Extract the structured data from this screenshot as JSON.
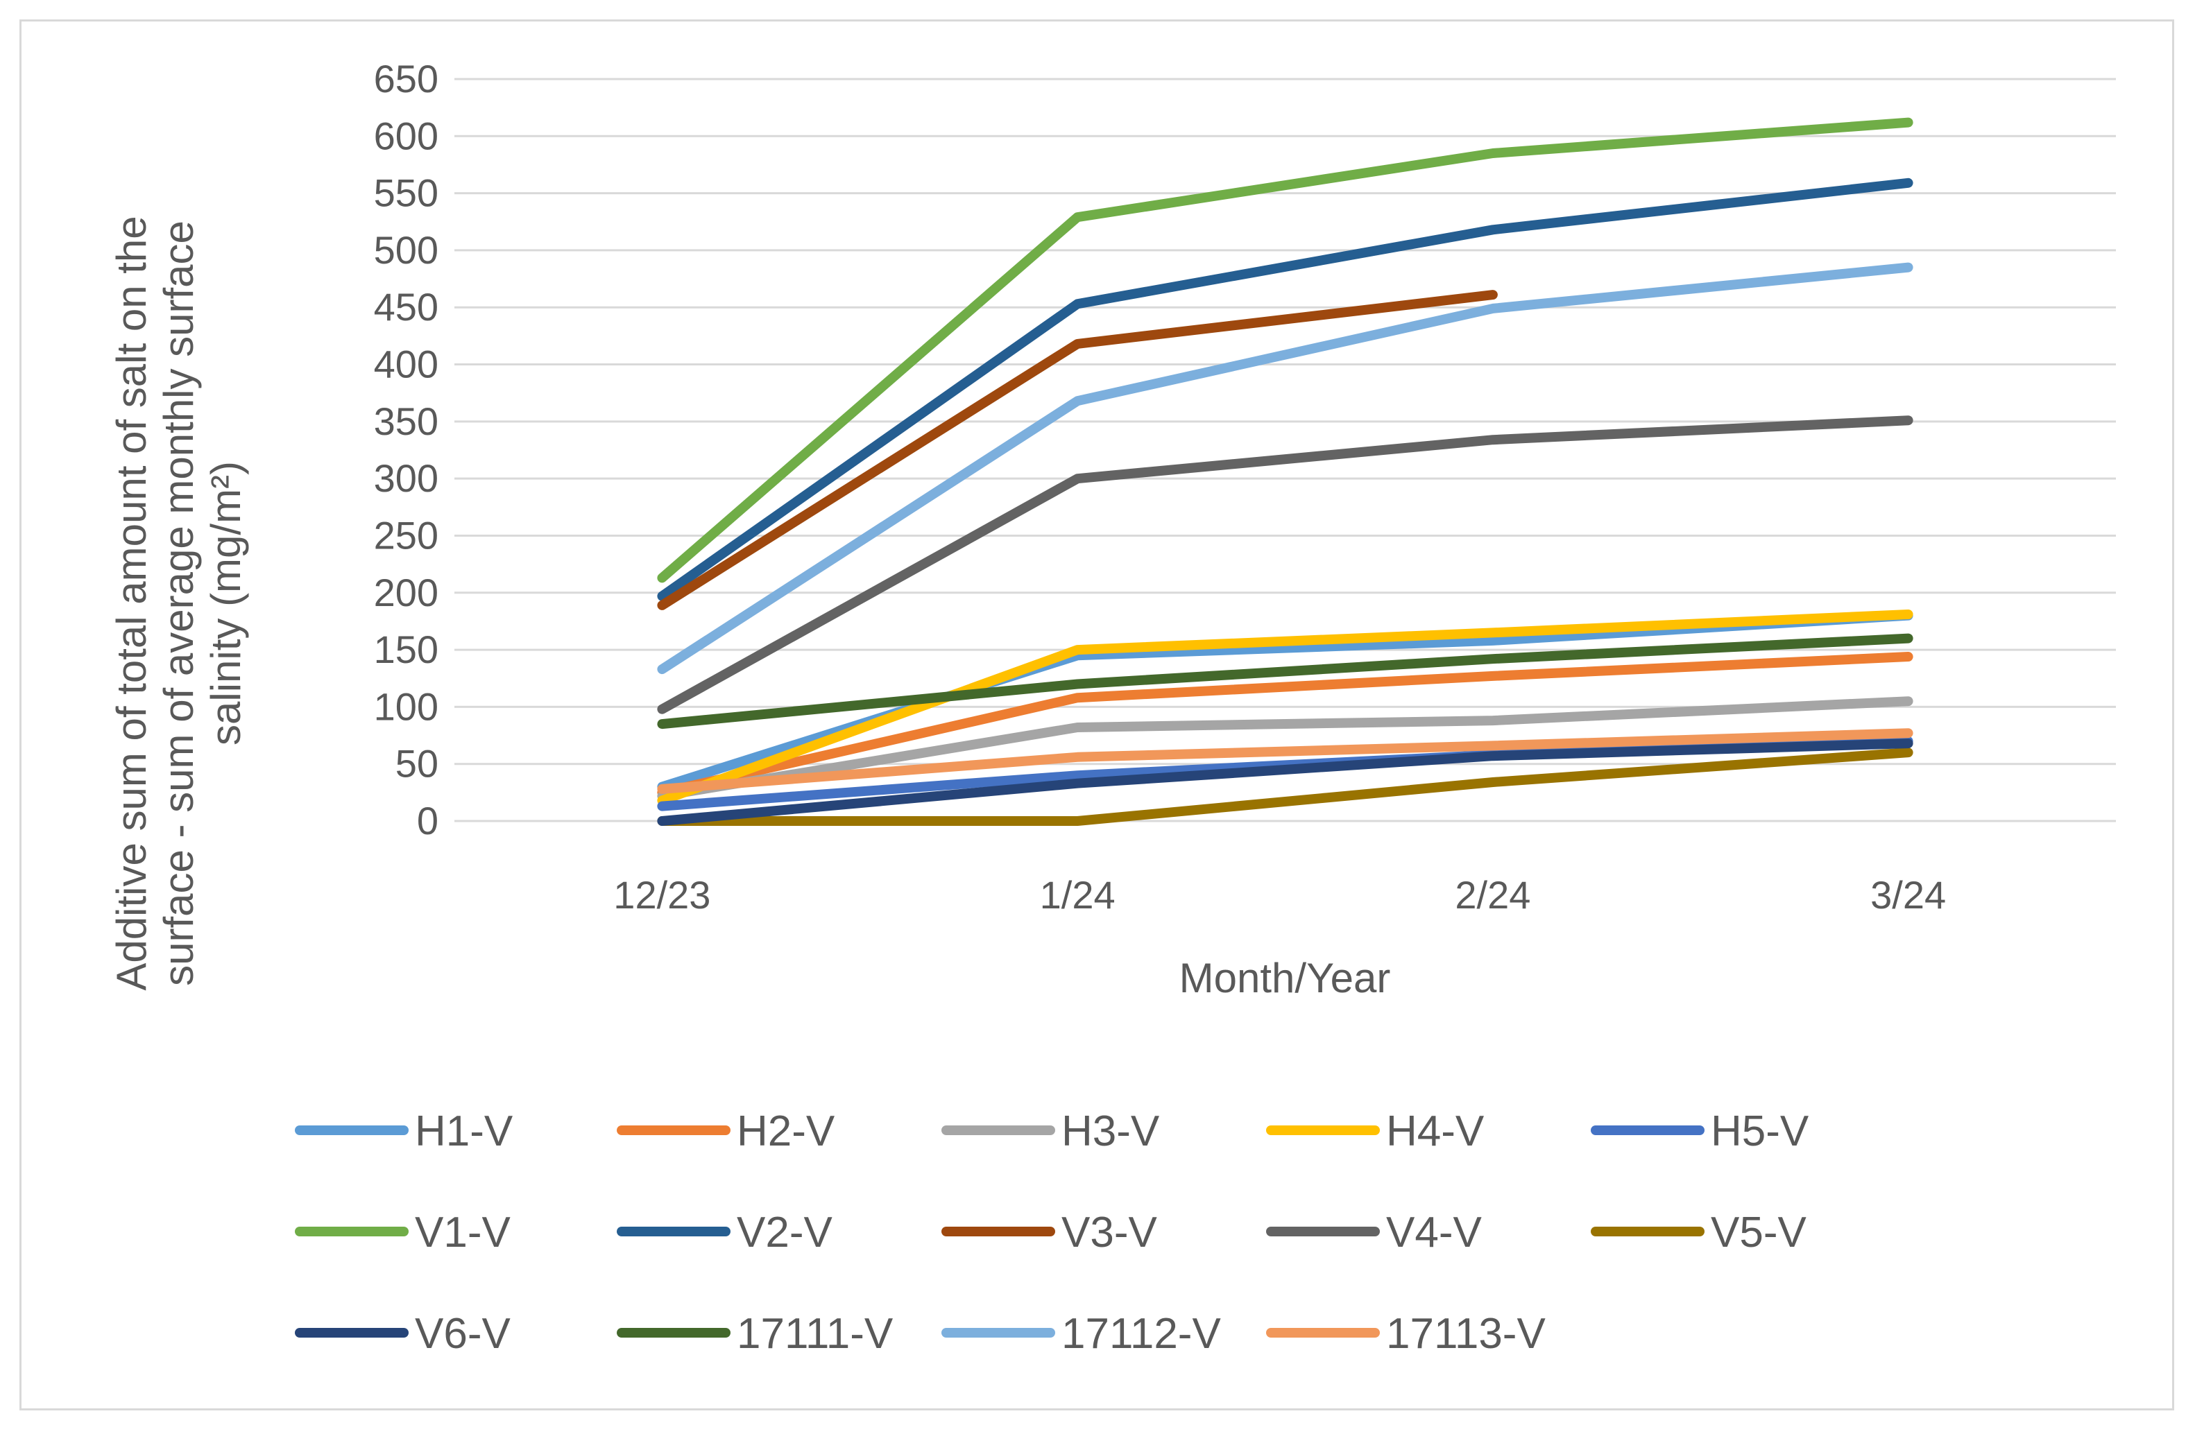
{
  "chart_data": {
    "type": "line",
    "title": "",
    "xlabel": "Month/Year",
    "ylabel_lines": [
      "Additive sum of total amount of salt on the",
      "surface - sum of average monthly surface",
      "salinity (mg/m²)"
    ],
    "categories": [
      "12/23",
      "1/24",
      "2/24",
      "3/24"
    ],
    "ylim": [
      0,
      650
    ],
    "yticks": [
      0,
      50,
      100,
      150,
      200,
      250,
      300,
      350,
      400,
      450,
      500,
      550,
      600,
      650
    ],
    "grid": true,
    "legend_position": "bottom",
    "series": [
      {
        "name": "H1-V",
        "color": "#5B9BD5",
        "values": [
          30,
          145,
          158,
          180
        ]
      },
      {
        "name": "H2-V",
        "color": "#ED7D31",
        "values": [
          25,
          108,
          127,
          144
        ]
      },
      {
        "name": "H3-V",
        "color": "#A5A5A5",
        "values": [
          22,
          82,
          88,
          105
        ]
      },
      {
        "name": "H4-V",
        "color": "#FFC000",
        "values": [
          18,
          150,
          165,
          181
        ]
      },
      {
        "name": "H5-V",
        "color": "#4472C4",
        "values": [
          13,
          40,
          58,
          70
        ]
      },
      {
        "name": "V1-V",
        "color": "#70AD47",
        "values": [
          213,
          529,
          585,
          612
        ]
      },
      {
        "name": "V2-V",
        "color": "#255E91",
        "values": [
          197,
          453,
          518,
          559
        ]
      },
      {
        "name": "V3-V",
        "color": "#9E480E",
        "values": [
          189,
          418,
          461,
          null
        ]
      },
      {
        "name": "V4-V",
        "color": "#636363",
        "values": [
          98,
          300,
          334,
          351
        ]
      },
      {
        "name": "V5-V",
        "color": "#997300",
        "values": [
          0,
          0,
          34,
          60
        ]
      },
      {
        "name": "V6-V",
        "color": "#264478",
        "values": [
          0,
          33,
          57,
          68
        ]
      },
      {
        "name": "17111-V",
        "color": "#43682B",
        "values": [
          85,
          120,
          142,
          160
        ]
      },
      {
        "name": "17112-V",
        "color": "#7CAFDD",
        "values": [
          133,
          368,
          449,
          485
        ]
      },
      {
        "name": "17113-V",
        "color": "#F1975A",
        "values": [
          28,
          56,
          66,
          77
        ]
      }
    ]
  }
}
